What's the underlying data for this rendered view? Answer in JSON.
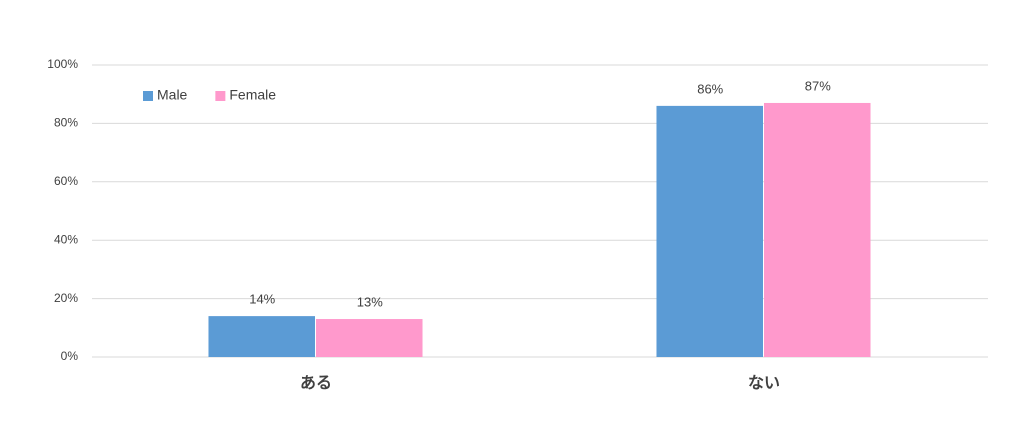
{
  "chart_data": {
    "type": "bar",
    "categories": [
      "ある",
      "ない"
    ],
    "series": [
      {
        "name": "Male",
        "color": "#5b9bd5",
        "values": [
          14,
          86
        ],
        "value_labels": [
          "14%",
          "86%"
        ]
      },
      {
        "name": "Female",
        "color": "#ff99cc",
        "values": [
          13,
          87
        ],
        "value_labels": [
          "13%",
          "87%"
        ]
      }
    ],
    "ylim": [
      0,
      100
    ],
    "yticks": [
      {
        "value": 0,
        "label": "0%"
      },
      {
        "value": 20,
        "label": "20%"
      },
      {
        "value": 40,
        "label": "40%"
      },
      {
        "value": 60,
        "label": "60%"
      },
      {
        "value": 80,
        "label": "80%"
      },
      {
        "value": 100,
        "label": "100%"
      }
    ],
    "grid": true,
    "legend": "top-left"
  }
}
